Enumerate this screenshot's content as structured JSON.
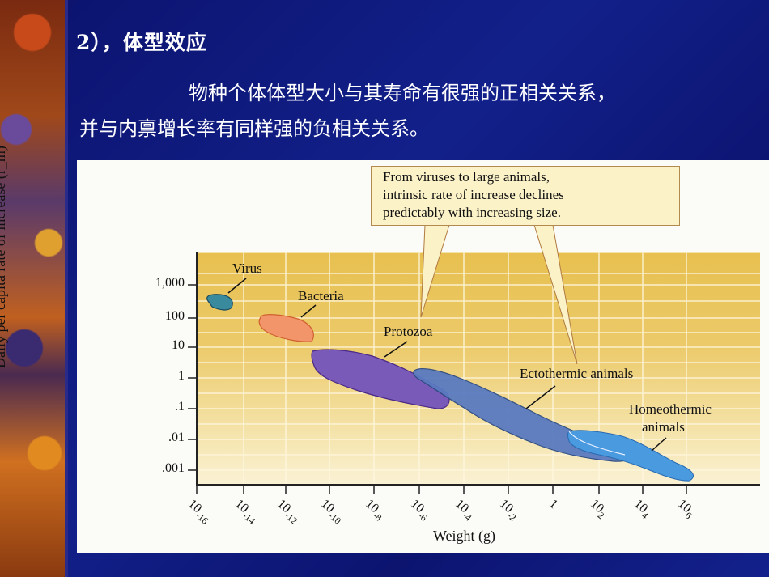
{
  "slide": {
    "title": "2），体型效应",
    "body_line1": "物种个体体型大小与其寿命有很强的正相关关系，",
    "body_line2": "并与内禀增长率有同样强的负相关关系。",
    "colors": {
      "background": "#0d1478",
      "text": "#ffffff",
      "plot_fill": "#e9c45c"
    }
  },
  "chart_data": {
    "type": "scatter",
    "title": "",
    "xlabel": "Weight (g)",
    "ylabel": "Daily per capita rate of increase (r_m)",
    "x_scale": "log10",
    "y_scale": "log10",
    "x_tick_labels": [
      "10-16",
      "10-14",
      "10-12",
      "10-10",
      "10-8",
      "10-6",
      "10-4",
      "10-2",
      "1",
      "102",
      "104",
      "106"
    ],
    "x_tick_exponents": [
      -16,
      -14,
      -12,
      -10,
      -8,
      -6,
      -4,
      -2,
      0,
      2,
      4,
      6
    ],
    "y_tick_labels": [
      "1,000",
      "100",
      "10",
      "1",
      ".1",
      ".01",
      ".001"
    ],
    "y_tick_values": [
      1000,
      100,
      10,
      1,
      0.1,
      0.01,
      0.001
    ],
    "grid": true,
    "callout": {
      "line1": "From viruses to large animals,",
      "line2": "intrinsic rate of increase declines",
      "line3": "predictably with increasing size."
    },
    "series": [
      {
        "name": "Virus",
        "color": "#2e8a9a",
        "log_weight_range": [
          -16.3,
          -15.4
        ],
        "log_rate_range": [
          2.3,
          2.7
        ]
      },
      {
        "name": "Bacteria",
        "color": "#f08a60",
        "log_weight_range": [
          -13.2,
          -11.8
        ],
        "log_rate_range": [
          1.2,
          2.0
        ]
      },
      {
        "name": "Protozoa",
        "color": "#7a5ab8",
        "log_weight_range": [
          -11.6,
          -5.3
        ],
        "log_rate_range": [
          -1.0,
          0.9
        ]
      },
      {
        "name": "Ectothermic animals",
        "color": "#5a7ac0",
        "log_weight_range": [
          -6.0,
          3.3
        ],
        "log_rate_range": [
          -2.7,
          0.3
        ]
      },
      {
        "name": "Homeothermic animals",
        "color": "#4a9ae0",
        "log_weight_range": [
          1.2,
          6.4
        ],
        "log_rate_range": [
          -3.1,
          -1.8
        ]
      }
    ],
    "labels": {
      "virus": "Virus",
      "bacteria": "Bacteria",
      "protozoa": "Protozoa",
      "ecto": "Ectothermic animals",
      "homeo_line1": "Homeothermic",
      "homeo_line2": "animals"
    }
  }
}
